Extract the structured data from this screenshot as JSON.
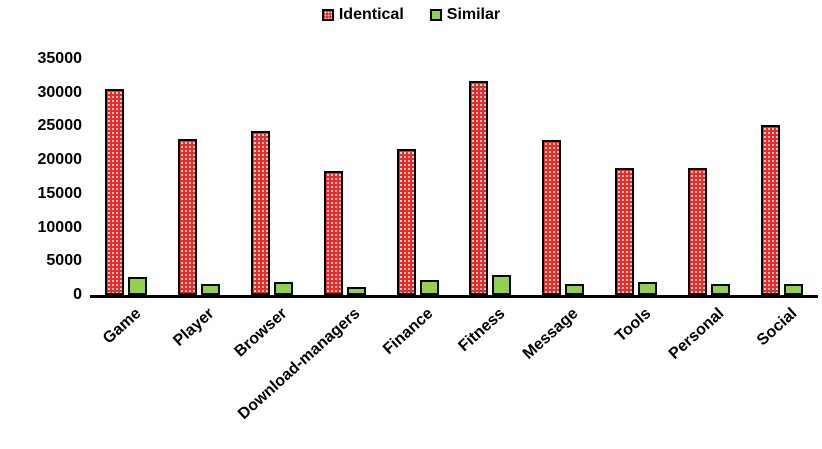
{
  "chart_data": {
    "type": "bar",
    "title": "",
    "xlabel": "",
    "ylabel": "",
    "categories": [
      "Game",
      "Player",
      "Browser",
      "Download-managers",
      "Finance",
      "Fitness",
      "Message",
      "Tools",
      "Personal",
      "Social"
    ],
    "series": [
      {
        "name": "Identical",
        "values": [
          30500,
          23200,
          24300,
          18400,
          21700,
          31800,
          23000,
          18900,
          18800,
          25200
        ],
        "color": "#ee2a26",
        "pattern": "dotted",
        "pattern_dot_color": "#ffffff"
      },
      {
        "name": "Similar",
        "values": [
          2600,
          1700,
          2000,
          1200,
          2300,
          2900,
          1700,
          1900,
          1600,
          1700
        ],
        "color": "#92d050",
        "pattern": "solid"
      }
    ],
    "ylim": [
      0,
      35000
    ],
    "yticks": [
      "0",
      "5000",
      "10000",
      "15000",
      "20000",
      "25000",
      "30000",
      "35000"
    ],
    "ytick_values": [
      0,
      5000,
      10000,
      15000,
      20000,
      25000,
      30000,
      35000
    ],
    "grid": false,
    "legend_position": "top-center",
    "bar_border_color": "#000000",
    "axis_line_color": "#000000",
    "x_label_rotation_deg": -42
  }
}
